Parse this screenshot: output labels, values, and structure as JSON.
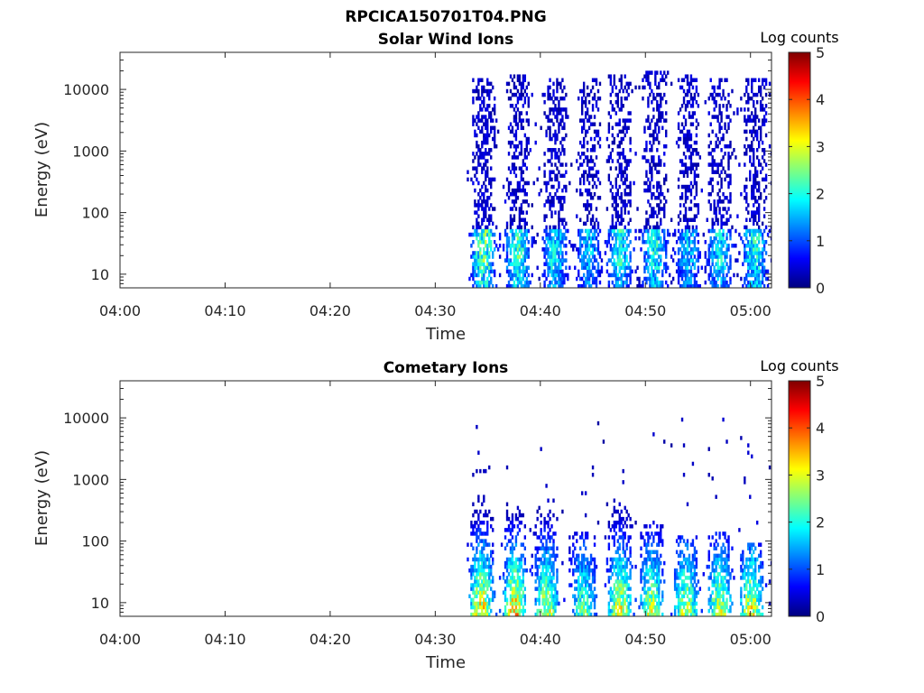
{
  "figure": {
    "title": "RPCICA150701T04.PNG"
  },
  "colormap": {
    "name": "jet",
    "stops": [
      "#00007f",
      "#0000ff",
      "#007fff",
      "#00ffff",
      "#7fff7f",
      "#ffff00",
      "#ff7f00",
      "#ff0000",
      "#7f0000"
    ]
  },
  "chart_data": [
    {
      "type": "heatmap",
      "title": "Solar Wind Ions",
      "xlabel": "Time",
      "ylabel": "Energy (eV)",
      "xlim": [
        "04:00",
        "05:02"
      ],
      "xticks": [
        "04:00",
        "04:10",
        "04:20",
        "04:30",
        "04:40",
        "04:50",
        "05:00"
      ],
      "ylim": [
        6,
        40000
      ],
      "yscale": "log",
      "yticks": [
        "10",
        "100",
        "1000",
        "10000"
      ],
      "colorbar": {
        "label": "Log counts",
        "range": [
          0,
          5
        ],
        "ticks": [
          "0",
          "1",
          "2",
          "3",
          "4",
          "5"
        ]
      },
      "grid": false,
      "data_start": "04:33",
      "bursts": [
        {
          "time": "04:34.5",
          "e_high": 15000,
          "low_log": 2.6,
          "dens": 0.55
        },
        {
          "time": "04:37.8",
          "e_high": 18000,
          "low_log": 2.4,
          "dens": 0.55
        },
        {
          "time": "04:41.3",
          "e_high": 15000,
          "low_log": 2.0,
          "dens": 0.5
        },
        {
          "time": "04:44.5",
          "e_high": 16000,
          "low_log": 1.8,
          "dens": 0.5
        },
        {
          "time": "04:47.5",
          "e_high": 18000,
          "low_log": 2.2,
          "dens": 0.5
        },
        {
          "time": "04:50.8",
          "e_high": 20000,
          "low_log": 2.2,
          "dens": 0.5
        },
        {
          "time": "04:54.0",
          "e_high": 18000,
          "low_log": 1.8,
          "dens": 0.5
        },
        {
          "time": "04:57.0",
          "e_high": 16000,
          "low_log": 2.0,
          "dens": 0.5
        },
        {
          "time": "05:00.3",
          "e_high": 15000,
          "low_log": 2.2,
          "dens": 0.55
        }
      ]
    },
    {
      "type": "heatmap",
      "title": "Cometary Ions",
      "xlabel": "Time",
      "ylabel": "Energy (eV)",
      "xlim": [
        "04:00",
        "05:02"
      ],
      "xticks": [
        "04:00",
        "04:10",
        "04:20",
        "04:30",
        "04:40",
        "04:50",
        "05:00"
      ],
      "ylim": [
        6,
        40000
      ],
      "yscale": "log",
      "yticks": [
        "10",
        "100",
        "1000",
        "10000"
      ],
      "colorbar": {
        "label": "Log counts",
        "range": [
          0,
          5
        ],
        "ticks": [
          "0",
          "1",
          "2",
          "3",
          "4",
          "5"
        ]
      },
      "grid": false,
      "data_start": "04:33",
      "bursts": [
        {
          "time": "04:34.3",
          "e_high": 600,
          "low_log": 3.5,
          "dens": 0.5
        },
        {
          "time": "04:37.5",
          "e_high": 400,
          "low_log": 3.6,
          "dens": 0.45
        },
        {
          "time": "04:40.5",
          "e_high": 500,
          "low_log": 3.0,
          "dens": 0.45
        },
        {
          "time": "04:44.0",
          "e_high": 150,
          "low_log": 2.4,
          "dens": 0.4
        },
        {
          "time": "04:47.5",
          "e_high": 500,
          "low_log": 3.2,
          "dens": 0.55
        },
        {
          "time": "04:50.5",
          "e_high": 200,
          "low_log": 3.0,
          "dens": 0.45
        },
        {
          "time": "04:53.8",
          "e_high": 120,
          "low_log": 3.0,
          "dens": 0.45
        },
        {
          "time": "04:57.0",
          "e_high": 150,
          "low_log": 3.0,
          "dens": 0.45
        },
        {
          "time": "05:00.0",
          "e_high": 100,
          "low_log": 3.2,
          "dens": 0.5
        }
      ]
    }
  ]
}
